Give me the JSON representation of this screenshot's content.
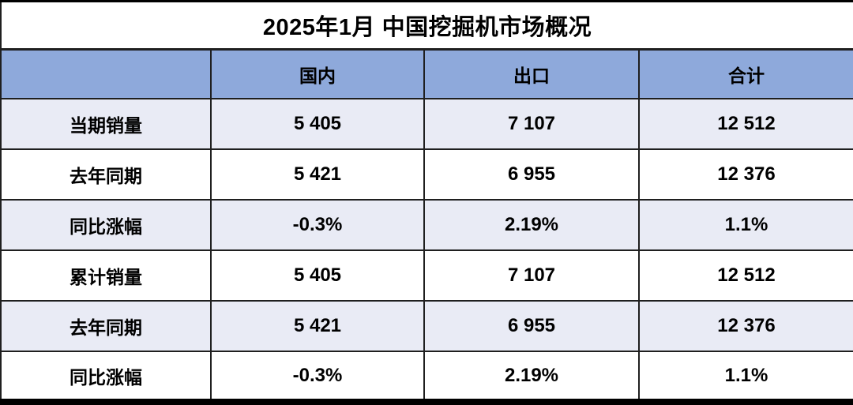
{
  "title": "2025年1月 中国挖掘机市场概况",
  "colors": {
    "header_bg": "#8EA9DB",
    "row_alt_bg": "#E9EBF5",
    "row_bg": "#FFFFFF",
    "border": "#1F1F1F",
    "text": "#000000"
  },
  "chart_data": {
    "type": "table",
    "title": "2025年1月 中国挖掘机市场概况",
    "columns": [
      "",
      "国内",
      "出口",
      "合计"
    ],
    "rows": [
      {
        "label": "当期销量",
        "values": [
          "5 405",
          "7 107",
          "12 512"
        ]
      },
      {
        "label": "去年同期",
        "values": [
          "5 421",
          "6 955",
          "12 376"
        ]
      },
      {
        "label": "同比涨幅",
        "values": [
          "-0.3%",
          "2.19%",
          "1.1%"
        ]
      },
      {
        "label": "累计销量",
        "values": [
          "5 405",
          "7 107",
          "12 512"
        ]
      },
      {
        "label": "去年同期",
        "values": [
          "5 421",
          "6 955",
          "12 376"
        ]
      },
      {
        "label": "同比涨幅",
        "values": [
          "-0.3%",
          "2.19%",
          "1.1%"
        ]
      }
    ]
  }
}
